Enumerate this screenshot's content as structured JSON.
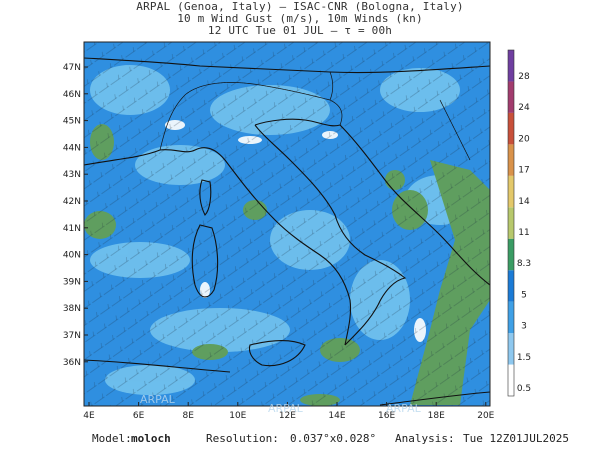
{
  "header": {
    "line1": "ARPAL (Genoa, Italy)  –  ISAC-CNR (Bologna, Italy)",
    "line2": "10 m Wind Gust (m/s), 10m Winds (kn)",
    "line3": "12 UTC Tue 01 JUL  –  τ = 00h"
  },
  "axes": {
    "lat_labels": [
      "47N",
      "46N",
      "45N",
      "44N",
      "43N",
      "42N",
      "41N",
      "40N",
      "39N",
      "38N",
      "37N",
      "36N"
    ],
    "lon_labels": [
      "4E",
      "6E",
      "8E",
      "10E",
      "12E",
      "14E",
      "16E",
      "18E",
      "20E"
    ]
  },
  "colorbar": {
    "labels": [
      "28",
      "24",
      "20",
      "17",
      "14",
      "11",
      "8.3",
      "5",
      "3",
      "1.5",
      "0.5"
    ],
    "colors": [
      "#ffffff",
      "#8ec8ef",
      "#3fa0e6",
      "#1b7bd6",
      "#3a9c64",
      "#b7c86c",
      "#e3c86a",
      "#d9924a",
      "#c8503a",
      "#a23c6e",
      "#6f3ea0"
    ]
  },
  "watermark": "ARPAL",
  "footer": {
    "model_label": "Model:",
    "model_value": "moloch",
    "resolution_label": "Resolution:",
    "resolution_value": "0.037°x0.028°",
    "analysis_label": "Analysis:",
    "analysis_value": "Tue 12Z01JUL2025"
  },
  "colors": {
    "sea_blue": "#2f8fe0",
    "light_blue": "#6fc0ec",
    "land_green": "#5f9e5f",
    "coast": "#111111"
  }
}
